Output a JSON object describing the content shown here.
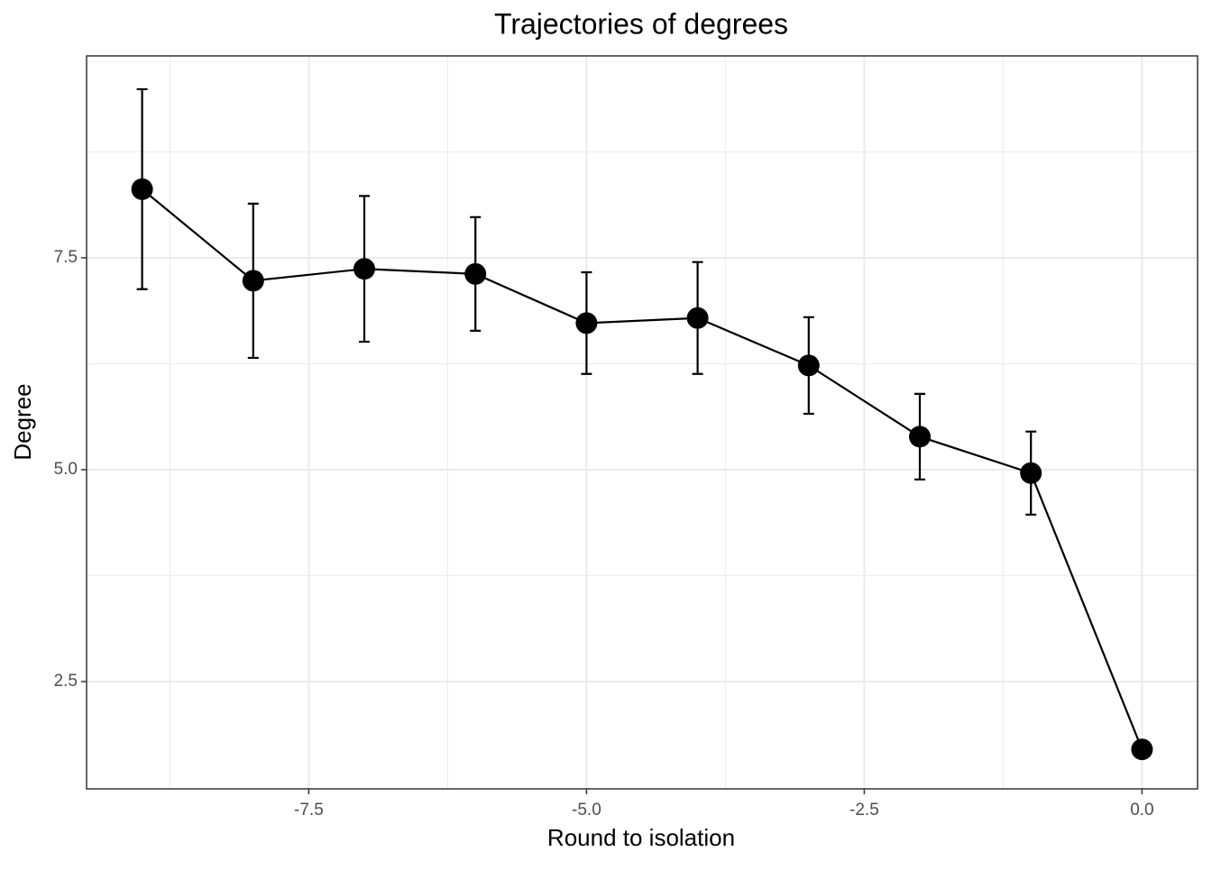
{
  "chart_data": {
    "type": "line",
    "title": "Trajectories of degrees",
    "x_label": "Round to isolation",
    "y_label": "Degree",
    "x": [
      -9,
      -8,
      -7,
      -6,
      -5,
      -4,
      -3,
      -2,
      -1,
      0
    ],
    "series": [
      {
        "color": "#000000",
        "values": [
          8.31,
          7.23,
          7.37,
          7.31,
          6.73,
          6.79,
          6.23,
          5.39,
          4.96,
          1.7
        ],
        "errors": [
          1.18,
          0.91,
          0.86,
          0.67,
          0.6,
          0.66,
          0.57,
          0.505,
          0.49,
          null
        ]
      }
    ],
    "xlim": [
      -9.5,
      0.5
    ],
    "ylim": [
      1.234,
      9.883
    ],
    "xticks": [
      -7.5,
      {
        "value": -5,
        "label": "-5.0"
      },
      -2.5,
      {
        "value": 0,
        "label": "0.0"
      }
    ],
    "yticks": [
      2.5,
      {
        "value": 5,
        "label": "5.0"
      },
      7.5
    ],
    "xminorticks": [
      -8.75,
      -6.25,
      -3.75,
      -1.25
    ],
    "yminorticks": [
      3.75,
      6.25,
      8.75
    ],
    "grid": true
  }
}
